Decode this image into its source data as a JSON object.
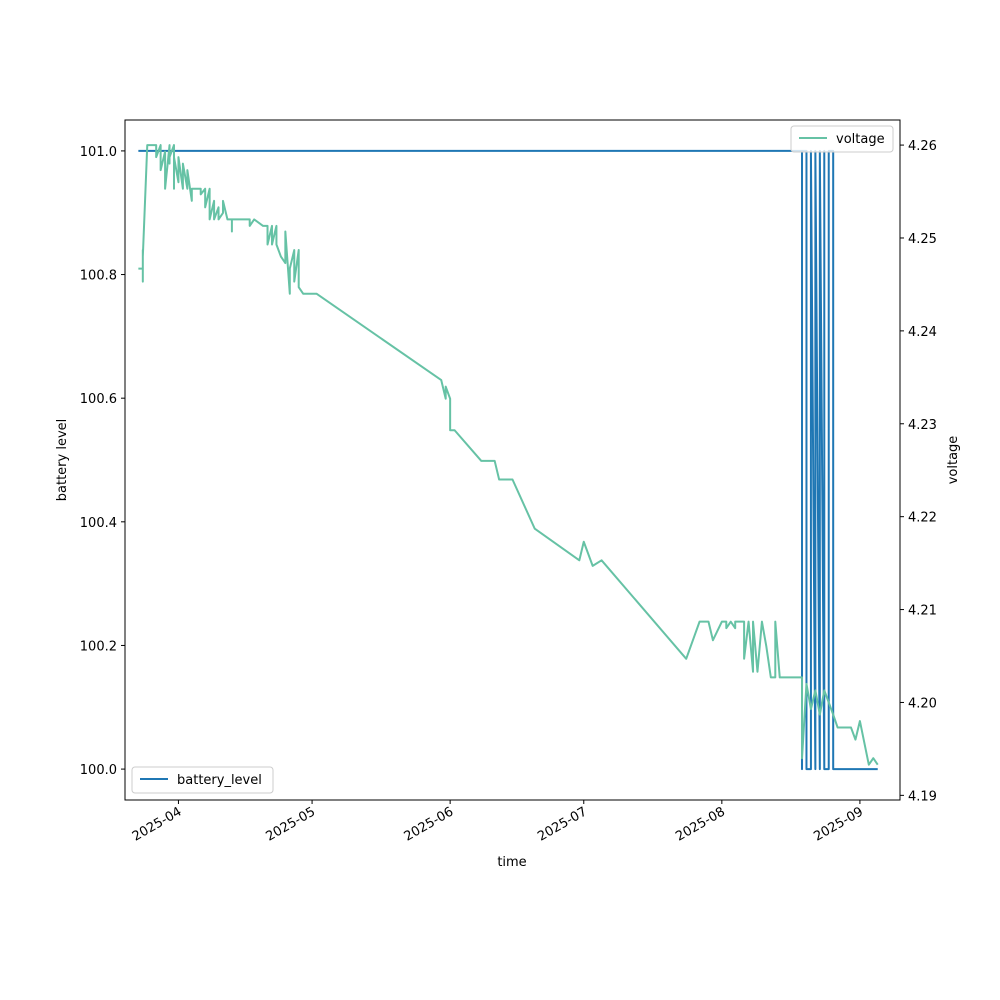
{
  "chart_data": {
    "type": "line",
    "title": "",
    "xlabel": "time",
    "ylabel_left": "battery level",
    "ylabel_right": "voltage",
    "xlim": [
      "2025-03-20",
      "2025-09-10"
    ],
    "ylim_left": [
      99.95,
      101.05
    ],
    "ylim_right": [
      4.1895,
      4.2627
    ],
    "grid": false,
    "x_ticks": [
      "2025-04-01",
      "2025-05-01",
      "2025-06-01",
      "2025-07-01",
      "2025-08-01",
      "2025-09-01"
    ],
    "x_tick_labels": [
      "2025-04",
      "2025-05",
      "2025-06",
      "2025-07",
      "2025-08",
      "2025-09"
    ],
    "y_left_ticks": [
      100.0,
      100.2,
      100.4,
      100.6,
      100.8,
      101.0
    ],
    "y_left_tick_labels": [
      "100.0",
      "100.2",
      "100.4",
      "100.6",
      "100.8",
      "101.0"
    ],
    "y_right_ticks": [
      4.19,
      4.2,
      4.21,
      4.22,
      4.23,
      4.24,
      4.25,
      4.26
    ],
    "y_right_tick_labels": [
      "4.19",
      "4.20",
      "4.21",
      "4.22",
      "4.23",
      "4.24",
      "4.25",
      "4.26"
    ],
    "series": [
      {
        "name": "battery_level",
        "axis": "left",
        "color": "#1f77b4",
        "legend": "lower-left",
        "points": [
          [
            "2025-03-23",
            101.0
          ],
          [
            "2025-08-19",
            101.0
          ],
          [
            "2025-08-19",
            100.0
          ],
          [
            "2025-08-19",
            101.0
          ],
          [
            "2025-08-20",
            101.0
          ],
          [
            "2025-08-20",
            100.0
          ],
          [
            "2025-08-21",
            100.0
          ],
          [
            "2025-08-21",
            101.0
          ],
          [
            "2025-08-21",
            101.0
          ],
          [
            "2025-08-22",
            100.0
          ],
          [
            "2025-08-22",
            100.0
          ],
          [
            "2025-08-22",
            101.0
          ],
          [
            "2025-08-22",
            101.0
          ],
          [
            "2025-08-23",
            100.0
          ],
          [
            "2025-08-23",
            100.0
          ],
          [
            "2025-08-23",
            101.0
          ],
          [
            "2025-08-23",
            101.0
          ],
          [
            "2025-08-24",
            100.0
          ],
          [
            "2025-08-24",
            100.0
          ],
          [
            "2025-08-24",
            101.0
          ],
          [
            "2025-08-24",
            101.0
          ],
          [
            "2025-08-24",
            100.0
          ],
          [
            "2025-08-25",
            100.0
          ],
          [
            "2025-08-25",
            101.0
          ],
          [
            "2025-08-26",
            101.0
          ],
          [
            "2025-08-26",
            100.0
          ],
          [
            "2025-09-05",
            100.0
          ]
        ]
      },
      {
        "name": "voltage",
        "axis": "right",
        "color": "#66c2a5",
        "legend": "upper-right",
        "points": [
          [
            "2025-03-23",
            4.2467
          ],
          [
            "2025-03-24",
            4.2467
          ],
          [
            "2025-03-24",
            4.2453
          ],
          [
            "2025-03-24",
            4.2487
          ],
          [
            "2025-03-24",
            4.248
          ],
          [
            "2025-03-25",
            4.26
          ],
          [
            "2025-03-27",
            4.26
          ],
          [
            "2025-03-27",
            4.2587
          ],
          [
            "2025-03-28",
            4.26
          ],
          [
            "2025-03-28",
            4.2573
          ],
          [
            "2025-03-29",
            4.2593
          ],
          [
            "2025-03-29",
            4.2553
          ],
          [
            "2025-03-30",
            4.26
          ],
          [
            "2025-03-30",
            4.258
          ],
          [
            "2025-03-30",
            4.2587
          ],
          [
            "2025-03-31",
            4.26
          ],
          [
            "2025-03-31",
            4.2553
          ],
          [
            "2025-03-31",
            4.2587
          ],
          [
            "2025-04-01",
            4.256
          ],
          [
            "2025-04-01",
            4.2587
          ],
          [
            "2025-04-02",
            4.2553
          ],
          [
            "2025-04-02",
            4.258
          ],
          [
            "2025-04-03",
            4.2553
          ],
          [
            "2025-04-03",
            4.2573
          ],
          [
            "2025-04-04",
            4.254
          ],
          [
            "2025-04-04",
            4.2553
          ],
          [
            "2025-04-05",
            4.2553
          ],
          [
            "2025-04-06",
            4.2553
          ],
          [
            "2025-04-06",
            4.2547
          ],
          [
            "2025-04-07",
            4.2553
          ],
          [
            "2025-04-07",
            4.2533
          ],
          [
            "2025-04-08",
            4.2553
          ],
          [
            "2025-04-08",
            4.252
          ],
          [
            "2025-04-09",
            4.254
          ],
          [
            "2025-04-09",
            4.252
          ],
          [
            "2025-04-10",
            4.2533
          ],
          [
            "2025-04-10",
            4.252
          ],
          [
            "2025-04-11",
            4.2527
          ],
          [
            "2025-04-11",
            4.2527
          ],
          [
            "2025-04-11",
            4.254
          ],
          [
            "2025-04-12",
            4.252
          ],
          [
            "2025-04-13",
            4.252
          ],
          [
            "2025-04-13",
            4.2507
          ],
          [
            "2025-04-13",
            4.252
          ],
          [
            "2025-04-16",
            4.252
          ],
          [
            "2025-04-17",
            4.252
          ],
          [
            "2025-04-17",
            4.2513
          ],
          [
            "2025-04-18",
            4.252
          ],
          [
            "2025-04-20",
            4.2513
          ],
          [
            "2025-04-21",
            4.2513
          ],
          [
            "2025-04-21",
            4.2493
          ],
          [
            "2025-04-22",
            4.2513
          ],
          [
            "2025-04-22",
            4.2493
          ],
          [
            "2025-04-23",
            4.2513
          ],
          [
            "2025-04-23",
            4.2493
          ],
          [
            "2025-04-24",
            4.248
          ],
          [
            "2025-04-25",
            4.2473
          ],
          [
            "2025-04-25",
            4.2507
          ],
          [
            "2025-04-26",
            4.244
          ],
          [
            "2025-04-26",
            4.2467
          ],
          [
            "2025-04-27",
            4.2487
          ],
          [
            "2025-04-27",
            4.2453
          ],
          [
            "2025-04-28",
            4.2487
          ],
          [
            "2025-04-28",
            4.2447
          ],
          [
            "2025-04-29",
            4.244
          ],
          [
            "2025-05-02",
            4.244
          ],
          [
            "2025-05-30",
            4.2347
          ],
          [
            "2025-05-31",
            4.2327
          ],
          [
            "2025-05-31",
            4.234
          ],
          [
            "2025-06-01",
            4.2327
          ],
          [
            "2025-06-01",
            4.2293
          ],
          [
            "2025-06-02",
            4.2293
          ],
          [
            "2025-06-08",
            4.226
          ],
          [
            "2025-06-11",
            4.226
          ],
          [
            "2025-06-12",
            4.224
          ],
          [
            "2025-06-15",
            4.224
          ],
          [
            "2025-06-20",
            4.2187
          ],
          [
            "2025-06-30",
            4.2153
          ],
          [
            "2025-07-01",
            4.2173
          ],
          [
            "2025-07-03",
            4.2147
          ],
          [
            "2025-07-05",
            4.2153
          ],
          [
            "2025-07-24",
            4.2047
          ],
          [
            "2025-07-27",
            4.2087
          ],
          [
            "2025-07-29",
            4.2087
          ],
          [
            "2025-07-30",
            4.2067
          ],
          [
            "2025-08-01",
            4.2087
          ],
          [
            "2025-08-02",
            4.2087
          ],
          [
            "2025-08-02",
            4.208
          ],
          [
            "2025-08-03",
            4.2087
          ],
          [
            "2025-08-04",
            4.208
          ],
          [
            "2025-08-04",
            4.2087
          ],
          [
            "2025-08-06",
            4.2087
          ],
          [
            "2025-08-06",
            4.2047
          ],
          [
            "2025-08-07",
            4.2087
          ],
          [
            "2025-08-08",
            4.2033
          ],
          [
            "2025-08-08",
            4.2087
          ],
          [
            "2025-08-09",
            4.2033
          ],
          [
            "2025-08-10",
            4.2087
          ],
          [
            "2025-08-11",
            4.206
          ],
          [
            "2025-08-12",
            4.2027
          ],
          [
            "2025-08-13",
            4.2027
          ],
          [
            "2025-08-13",
            4.2087
          ],
          [
            "2025-08-14",
            4.2027
          ],
          [
            "2025-08-19",
            4.2027
          ],
          [
            "2025-08-19",
            4.194
          ],
          [
            "2025-08-20",
            4.202
          ],
          [
            "2025-08-21",
            4.1993
          ],
          [
            "2025-08-22",
            4.2013
          ],
          [
            "2025-08-23",
            4.1987
          ],
          [
            "2025-08-24",
            4.2013
          ],
          [
            "2025-08-26",
            4.1987
          ],
          [
            "2025-08-27",
            4.1973
          ],
          [
            "2025-08-30",
            4.1973
          ],
          [
            "2025-08-31",
            4.196
          ],
          [
            "2025-09-01",
            4.198
          ],
          [
            "2025-09-03",
            4.1933
          ],
          [
            "2025-09-04",
            4.194
          ],
          [
            "2025-09-05",
            4.1933
          ]
        ]
      }
    ]
  }
}
